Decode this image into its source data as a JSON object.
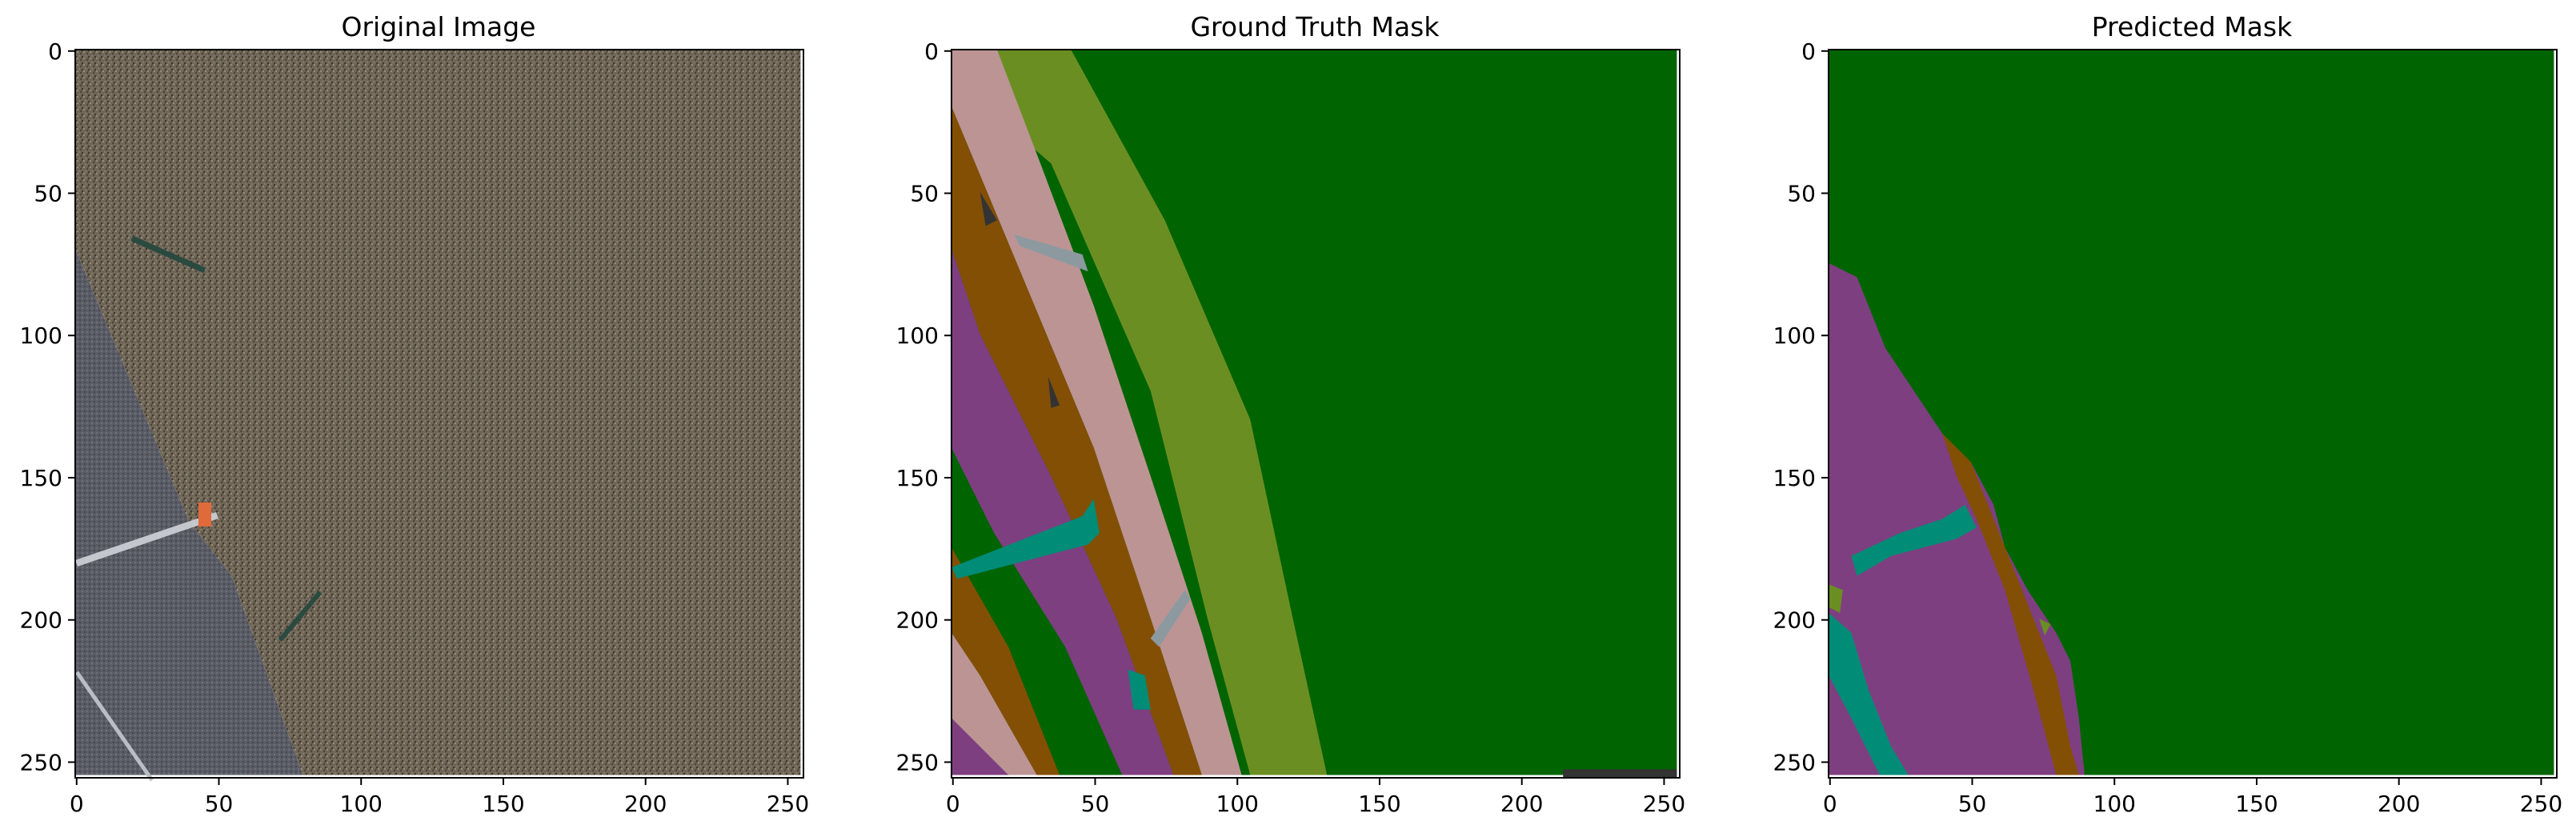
{
  "figure": {
    "panels": [
      {
        "id": "original",
        "title": "Original Image"
      },
      {
        "id": "truth",
        "title": "Ground Truth Mask"
      },
      {
        "id": "predicted",
        "title": "Predicted Mask"
      }
    ]
  },
  "chart_data": [
    {
      "type": "heatmap",
      "title": "Original Image",
      "xlabel": "",
      "ylabel": "",
      "xlim": [
        0,
        255
      ],
      "ylim": [
        255,
        0
      ],
      "xticks": [
        0,
        50,
        100,
        150,
        200,
        250
      ],
      "yticks": [
        0,
        50,
        100,
        150,
        200,
        250
      ],
      "content": "aerial photo",
      "regions": [
        {
          "label": "road",
          "color": "#5a5a62",
          "polygon": [
            [
              0,
              70
            ],
            [
              40,
              166
            ],
            [
              55,
              185
            ],
            [
              80,
              255
            ],
            [
              0,
              255
            ]
          ]
        },
        {
          "label": "dry grass",
          "color": "#6e6456",
          "polygon": [
            [
              0,
              0
            ],
            [
              255,
              0
            ],
            [
              255,
              255
            ],
            [
              80,
              255
            ],
            [
              55,
              185
            ],
            [
              40,
              166
            ],
            [
              0,
              70
            ]
          ]
        }
      ]
    },
    {
      "type": "heatmap",
      "title": "Ground Truth Mask",
      "xlabel": "",
      "ylabel": "",
      "xlim": [
        0,
        255
      ],
      "ylim": [
        255,
        0
      ],
      "xticks": [
        0,
        50,
        100,
        150,
        200,
        250
      ],
      "yticks": [
        0,
        50,
        100,
        150,
        200,
        250
      ],
      "classes": [
        {
          "color": "#006400",
          "polygon": [
            [
              0,
              0
            ],
            [
              255,
              0
            ],
            [
              255,
              255
            ],
            [
              0,
              255
            ]
          ]
        },
        {
          "color": "#6b8e23",
          "polygon": [
            [
              0,
              0
            ],
            [
              42,
              0
            ],
            [
              75,
              60
            ],
            [
              105,
              130
            ],
            [
              120,
              200
            ],
            [
              132,
              255
            ],
            [
              105,
              255
            ],
            [
              90,
              200
            ],
            [
              70,
              120
            ],
            [
              35,
              40
            ],
            [
              0,
              10
            ]
          ]
        },
        {
          "color": "#bc9494",
          "polygon": [
            [
              0,
              0
            ],
            [
              16,
              0
            ],
            [
              32,
              42
            ],
            [
              50,
              90
            ],
            [
              70,
              150
            ],
            [
              88,
              205
            ],
            [
              102,
              255
            ],
            [
              88,
              255
            ],
            [
              70,
              200
            ],
            [
              50,
              140
            ],
            [
              25,
              80
            ],
            [
              0,
              20
            ]
          ]
        },
        {
          "color": "#834f04",
          "polygon": [
            [
              0,
              20
            ],
            [
              25,
              80
            ],
            [
              50,
              140
            ],
            [
              70,
              200
            ],
            [
              88,
              255
            ],
            [
              78,
              255
            ],
            [
              58,
              200
            ],
            [
              35,
              150
            ],
            [
              10,
              100
            ],
            [
              0,
              70
            ]
          ]
        },
        {
          "color": "#7e3f80",
          "polygon": [
            [
              0,
              70
            ],
            [
              10,
              100
            ],
            [
              35,
              150
            ],
            [
              58,
              200
            ],
            [
              78,
              255
            ],
            [
              60,
              255
            ],
            [
              40,
              210
            ],
            [
              15,
              170
            ],
            [
              0,
              140
            ]
          ]
        },
        {
          "color": "#834f04",
          "polygon": [
            [
              0,
              175
            ],
            [
              20,
              210
            ],
            [
              38,
              255
            ],
            [
              30,
              255
            ],
            [
              10,
              220
            ],
            [
              0,
              205
            ]
          ]
        },
        {
          "color": "#bc9494",
          "polygon": [
            [
              0,
              205
            ],
            [
              10,
              220
            ],
            [
              30,
              255
            ],
            [
              20,
              255
            ],
            [
              0,
              240
            ]
          ]
        },
        {
          "color": "#7e3f80",
          "polygon": [
            [
              0,
              235
            ],
            [
              20,
              255
            ],
            [
              0,
              255
            ]
          ]
        },
        {
          "color": "#008c77",
          "polygon": [
            [
              0,
              182
            ],
            [
              46,
              164
            ],
            [
              50,
              158
            ],
            [
              52,
              170
            ],
            [
              48,
              174
            ],
            [
              2,
              186
            ]
          ]
        },
        {
          "color": "#008c77",
          "polygon": [
            [
              62,
              218
            ],
            [
              68,
              220
            ],
            [
              70,
              232
            ],
            [
              64,
              232
            ]
          ]
        },
        {
          "color": "#8c9aa0",
          "polygon": [
            [
              22,
              65
            ],
            [
              46,
              72
            ],
            [
              48,
              78
            ],
            [
              24,
              69
            ]
          ]
        },
        {
          "color": "#8c9aa0",
          "polygon": [
            [
              70,
              207
            ],
            [
              82,
              190
            ],
            [
              84,
              193
            ],
            [
              73,
              210
            ]
          ]
        },
        {
          "color": "#333333",
          "polygon": [
            [
              10,
              50
            ],
            [
              16,
              60
            ],
            [
              12,
              62
            ]
          ]
        },
        {
          "color": "#333333",
          "polygon": [
            [
              34,
              115
            ],
            [
              38,
              125
            ],
            [
              35,
              126
            ]
          ]
        },
        {
          "color": "#333333",
          "polygon": [
            [
              215,
              253
            ],
            [
              255,
              253
            ],
            [
              255,
              256
            ],
            [
              215,
              256
            ]
          ]
        }
      ]
    },
    {
      "type": "heatmap",
      "title": "Predicted Mask",
      "xlabel": "",
      "ylabel": "",
      "xlim": [
        0,
        255
      ],
      "ylim": [
        255,
        0
      ],
      "xticks": [
        0,
        50,
        100,
        150,
        200,
        250
      ],
      "yticks": [
        0,
        50,
        100,
        150,
        200,
        250
      ],
      "classes": [
        {
          "color": "#006400",
          "polygon": [
            [
              0,
              0
            ],
            [
              255,
              0
            ],
            [
              255,
              255
            ],
            [
              0,
              255
            ]
          ]
        },
        {
          "color": "#7e3f80",
          "polygon": [
            [
              0,
              75
            ],
            [
              10,
              80
            ],
            [
              20,
              105
            ],
            [
              30,
              120
            ],
            [
              40,
              135
            ],
            [
              50,
              145
            ],
            [
              58,
              160
            ],
            [
              62,
              175
            ],
            [
              70,
              190
            ],
            [
              80,
              205
            ],
            [
              85,
              215
            ],
            [
              88,
              235
            ],
            [
              90,
              255
            ],
            [
              0,
              255
            ]
          ]
        },
        {
          "color": "#834f04",
          "polygon": [
            [
              40,
              135
            ],
            [
              50,
              145
            ],
            [
              60,
              170
            ],
            [
              70,
              195
            ],
            [
              80,
              220
            ],
            [
              85,
              245
            ],
            [
              88,
              255
            ],
            [
              80,
              255
            ],
            [
              72,
              225
            ],
            [
              62,
              190
            ],
            [
              52,
              165
            ],
            [
              45,
              150
            ]
          ]
        },
        {
          "color": "#008c77",
          "polygon": [
            [
              8,
              178
            ],
            [
              25,
              170
            ],
            [
              40,
              165
            ],
            [
              48,
              160
            ],
            [
              52,
              168
            ],
            [
              45,
              172
            ],
            [
              22,
              178
            ],
            [
              10,
              185
            ]
          ]
        },
        {
          "color": "#008c77",
          "polygon": [
            [
              0,
              198
            ],
            [
              8,
              205
            ],
            [
              14,
              225
            ],
            [
              22,
              245
            ],
            [
              28,
              255
            ],
            [
              18,
              255
            ],
            [
              8,
              235
            ],
            [
              0,
              220
            ]
          ]
        },
        {
          "color": "#6b8e23",
          "polygon": [
            [
              0,
              188
            ],
            [
              5,
              190
            ],
            [
              4,
              198
            ],
            [
              0,
              196
            ]
          ]
        },
        {
          "color": "#6b8e23",
          "polygon": [
            [
              74,
              200
            ],
            [
              78,
              202
            ],
            [
              76,
              206
            ]
          ]
        }
      ]
    }
  ]
}
